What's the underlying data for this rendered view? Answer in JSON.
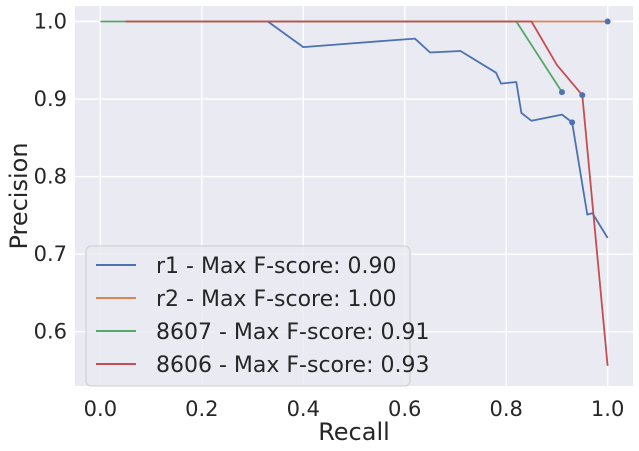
{
  "chart_data": {
    "type": "line",
    "title": "",
    "xlabel": "Recall",
    "ylabel": "Precision",
    "xlim": [
      -0.05,
      1.05
    ],
    "ylim": [
      0.53,
      1.02
    ],
    "grid": true,
    "legend_position": "lower-left",
    "xticks": [
      0.0,
      0.2,
      0.4,
      0.6,
      0.8,
      1.0
    ],
    "yticks": [
      0.6,
      0.7,
      0.8,
      0.9,
      1.0
    ],
    "series": [
      {
        "name": "r1 - Max F-score: 0.90",
        "color": "#4c72b0",
        "x": [
          0.05,
          0.33,
          0.4,
          0.48,
          0.56,
          0.62,
          0.65,
          0.71,
          0.78,
          0.79,
          0.82,
          0.83,
          0.85,
          0.91,
          0.93,
          0.96,
          0.97,
          1.0
        ],
        "y": [
          1.0,
          1.0,
          0.967,
          0.971,
          0.975,
          0.978,
          0.96,
          0.962,
          0.934,
          0.92,
          0.922,
          0.882,
          0.872,
          0.88,
          0.87,
          0.751,
          0.753,
          0.721
        ],
        "max_point": [
          0.93,
          0.87
        ]
      },
      {
        "name": "r2 - Max F-score: 1.00",
        "color": "#dd8452",
        "x": [
          0.05,
          1.0
        ],
        "y": [
          1.0,
          1.0
        ],
        "max_point": [
          1.0,
          1.0
        ]
      },
      {
        "name": "8607 - Max F-score: 0.91",
        "color": "#55a868",
        "x": [
          0.0,
          0.05,
          0.82,
          0.91
        ],
        "y": [
          1.0,
          1.0,
          1.0,
          0.909
        ],
        "max_point": [
          0.91,
          0.909
        ]
      },
      {
        "name": "8606 - Max F-score: 0.93",
        "color": "#c44e52",
        "x": [
          0.05,
          0.85,
          0.9,
          0.95,
          1.0
        ],
        "y": [
          1.0,
          1.0,
          0.944,
          0.905,
          0.556
        ],
        "max_point": [
          0.95,
          0.905
        ]
      }
    ]
  }
}
